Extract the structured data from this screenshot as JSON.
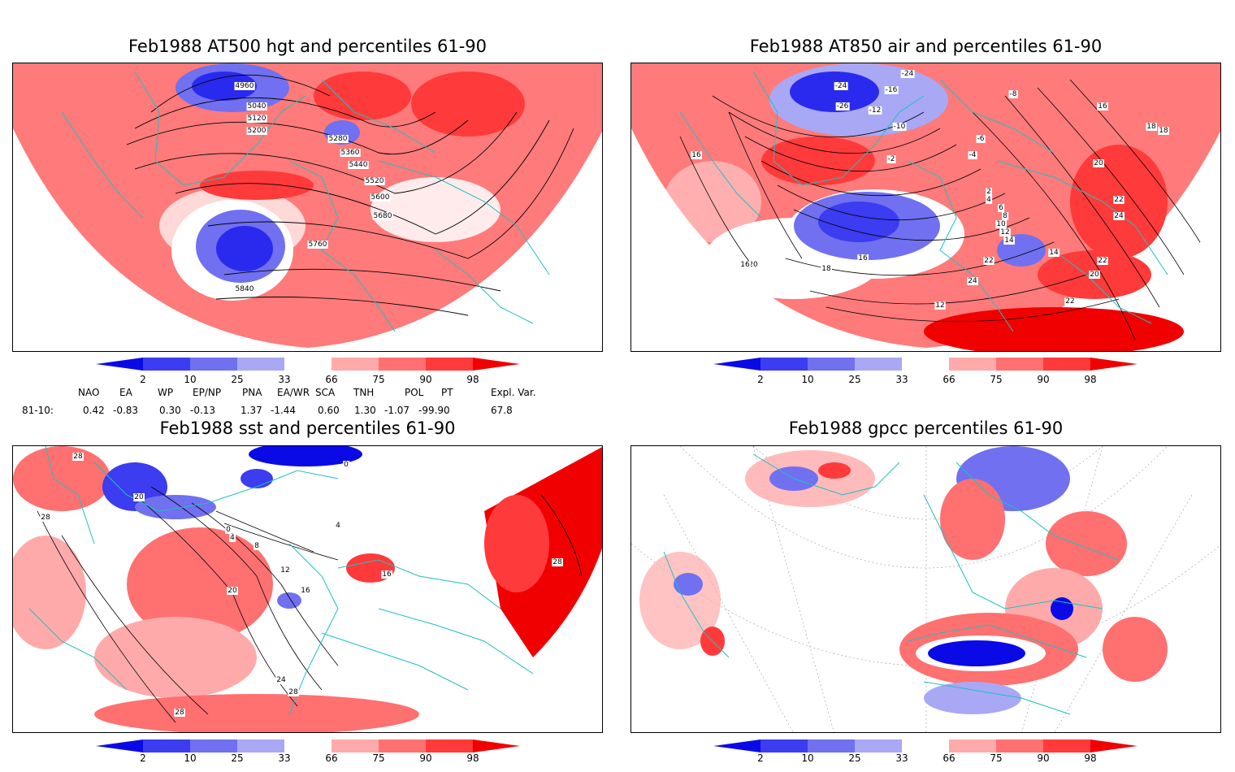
{
  "panels": [
    {
      "title": "Feb1988 AT500 hgt and percentiles 61-90",
      "contour_labels": [
        "4960",
        "5040",
        "5120",
        "5200",
        "5280",
        "5360",
        "5440",
        "5520",
        "5600",
        "5680",
        "5760",
        "5840"
      ]
    },
    {
      "title": "Feb1988 AT850 air and percentiles 61-90",
      "contour_labels": [
        "-24",
        "-26",
        "-24",
        "-16",
        "-12",
        "-10",
        "-8",
        "-6",
        "-4",
        "-2",
        "2",
        "4",
        "6",
        "8",
        "10",
        "12",
        "14",
        "16",
        "18",
        "20",
        "22",
        "24",
        "12",
        "14",
        "16",
        "16",
        "18",
        "18",
        "20",
        "22",
        "24",
        "22",
        "20",
        "22",
        "16"
      ]
    },
    {
      "title": "Feb1988 sst and percentiles 61-90",
      "contour_labels": [
        "28",
        "28",
        "20",
        "0",
        "4",
        "8",
        "12",
        "16",
        "20",
        "24",
        "28",
        "28",
        "0",
        "4",
        "16",
        "28"
      ]
    },
    {
      "title": "Feb1988 gpcc percentiles 61-90",
      "contour_labels": []
    }
  ],
  "colorbar": {
    "ticks": [
      "2",
      "10",
      "25",
      "33",
      "66",
      "75",
      "90",
      "98"
    ],
    "colors": [
      "#0a0ae6",
      "#3c3cf0",
      "#7070f0",
      "#a8a8f5",
      "#ffffff",
      "#ffaaaa",
      "#ff7070",
      "#ff3a3a",
      "#f00000"
    ]
  },
  "indices": {
    "header": [
      "NAO",
      "EA",
      "WP",
      "EP/NP",
      "PNA",
      "EA/WR",
      "SCA",
      "TNH",
      "POL",
      "PT",
      "Expl. Var."
    ],
    "row_label": "81-10:",
    "values": [
      "0.42",
      "-0.83",
      "0.30",
      "-0.13",
      "1.37",
      "-1.44",
      "0.60",
      "1.30",
      "-1.07",
      "-99.90",
      "67.8"
    ]
  }
}
